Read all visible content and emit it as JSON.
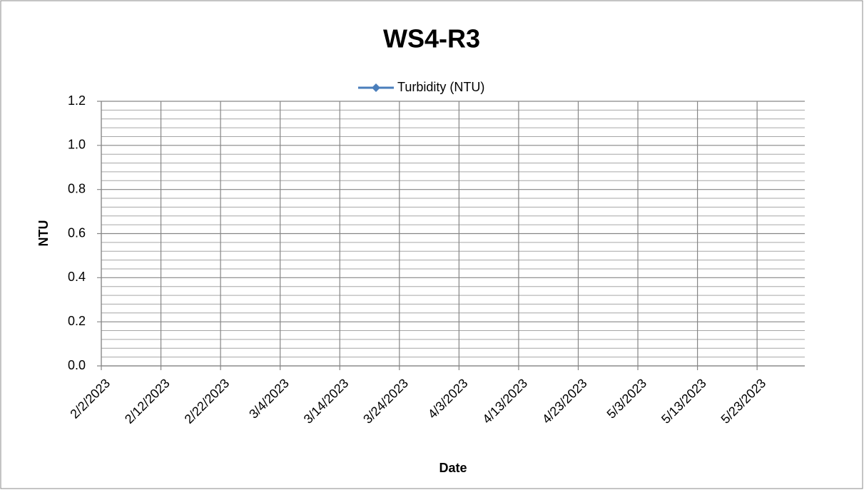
{
  "chart_data": {
    "type": "line",
    "title": "WS4-R3",
    "x_label": "Date",
    "y_label": "NTU",
    "series": [
      {
        "name": "Turbidity (NTU)",
        "color": "#4a7ebb",
        "x": [],
        "values": []
      }
    ],
    "xlim": [
      "2023-02-02",
      "2023-05-31"
    ],
    "xticks": [
      {
        "value": "2023-02-02",
        "label": "2/2/2023"
      },
      {
        "value": "2023-02-12",
        "label": "2/12/2023"
      },
      {
        "value": "2023-02-22",
        "label": "2/22/2023"
      },
      {
        "value": "2023-03-04",
        "label": "3/4/2023"
      },
      {
        "value": "2023-03-14",
        "label": "3/14/2023"
      },
      {
        "value": "2023-03-24",
        "label": "3/24/2023"
      },
      {
        "value": "2023-04-03",
        "label": "4/3/2023"
      },
      {
        "value": "2023-04-13",
        "label": "4/13/2023"
      },
      {
        "value": "2023-04-23",
        "label": "4/23/2023"
      },
      {
        "value": "2023-05-03",
        "label": "5/3/2023"
      },
      {
        "value": "2023-05-13",
        "label": "5/13/2023"
      },
      {
        "value": "2023-05-23",
        "label": "5/23/2023"
      }
    ],
    "ylim": [
      0,
      1.2
    ],
    "yticks": [
      {
        "value": 0,
        "label": "0.0"
      },
      {
        "value": 0.2,
        "label": "0.2"
      },
      {
        "value": 0.4,
        "label": "0.4"
      },
      {
        "value": 0.6,
        "label": "0.6"
      },
      {
        "value": 0.8,
        "label": "0.8"
      },
      {
        "value": 1.0,
        "label": "1.0"
      },
      {
        "value": 1.2,
        "label": "1.2"
      }
    ],
    "yminorticks": [
      0.04,
      0.08,
      0.12,
      0.16,
      0.24,
      0.28,
      0.32,
      0.36,
      0.44,
      0.48,
      0.52,
      0.56,
      0.64,
      0.68,
      0.72,
      0.76,
      0.84,
      0.88,
      0.92,
      0.96,
      1.04,
      1.08,
      1.12,
      1.16
    ],
    "grid": true,
    "legend": "top"
  }
}
